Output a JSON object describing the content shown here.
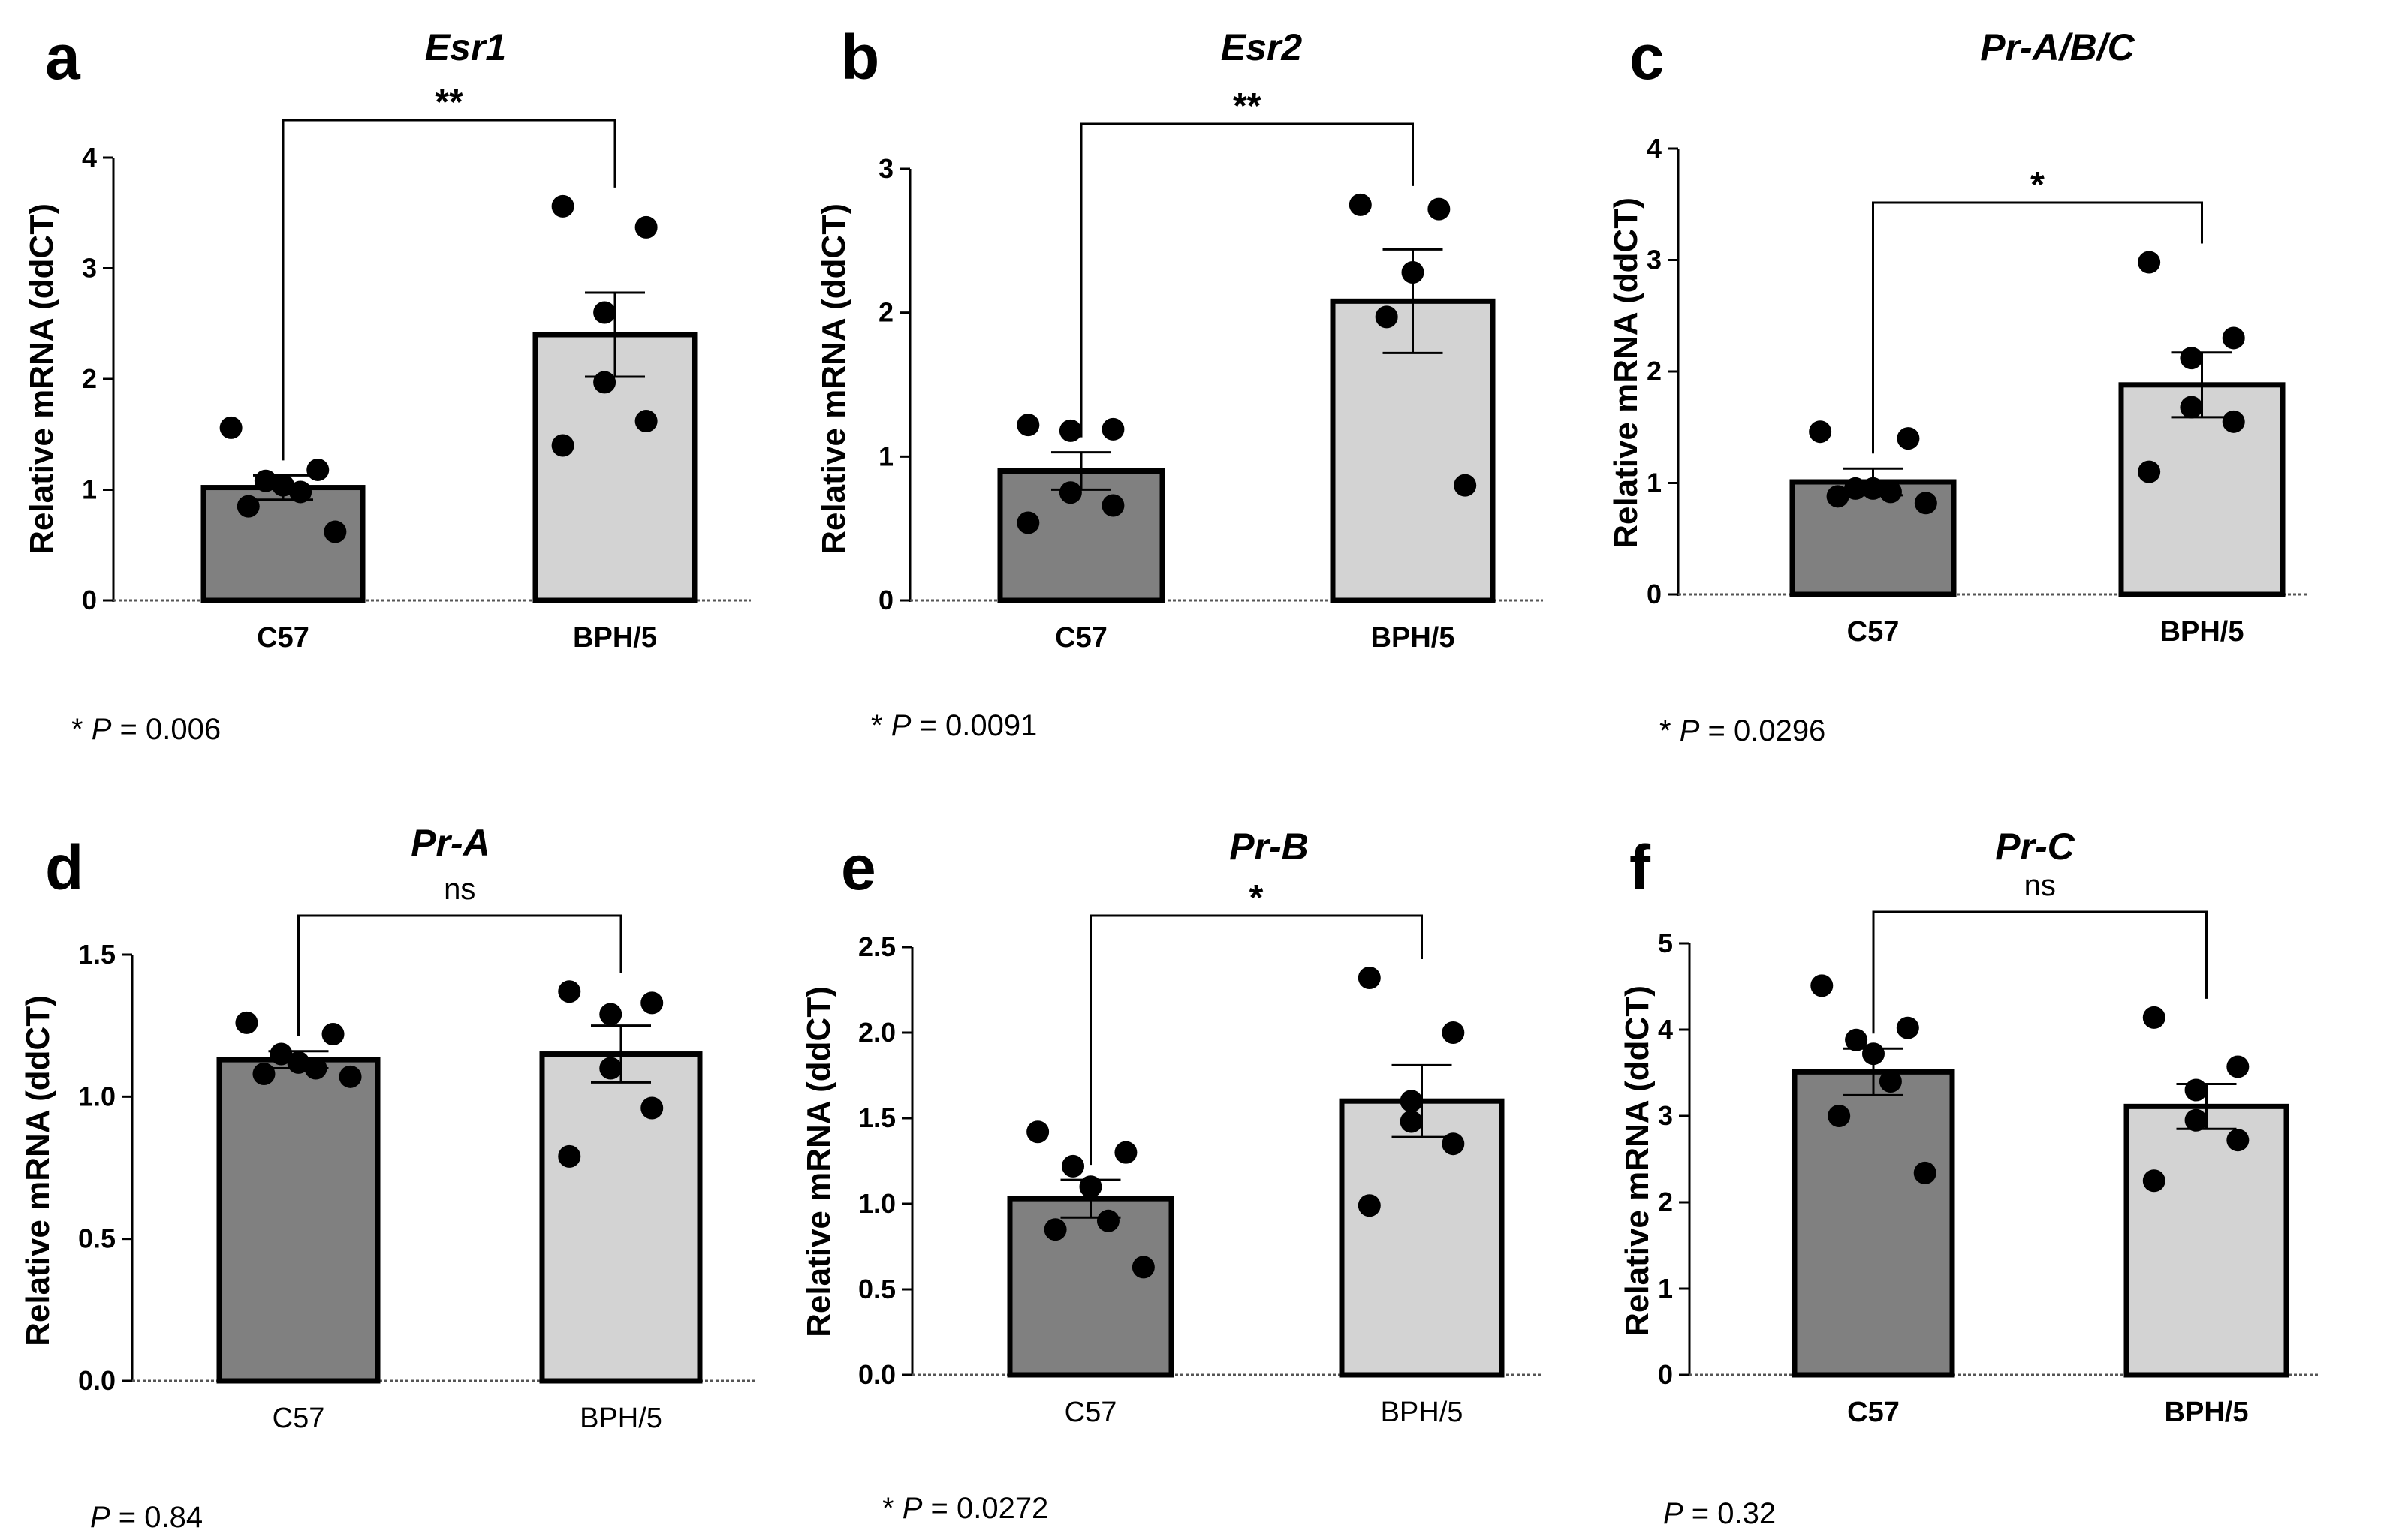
{
  "figure": {
    "ylabel": "Relative mRNA (ddCT)"
  },
  "colors": {
    "C57": "#808080",
    "BPH/5": "#d3d3d3",
    "outline": "#000000"
  },
  "chart_data": [
    {
      "type": "bar",
      "panel": "a",
      "title": "Esr1",
      "ylabel": "Relative mRNA (ddCT)",
      "ylim": [
        0,
        4
      ],
      "ticks": [
        "0",
        "1",
        "2",
        "3",
        "4"
      ],
      "categories": [
        "C57",
        "BPH/5"
      ],
      "category_label_bold": true,
      "values": [
        1.02,
        2.4
      ],
      "sem": [
        0.11,
        0.38
      ],
      "points": [
        [
          1.56,
          1.18,
          1.08,
          1.04,
          0.98,
          0.85,
          0.62
        ],
        [
          3.56,
          3.37,
          2.6,
          1.97,
          1.62,
          1.4
        ]
      ],
      "significance": "**",
      "p_note": {
        "prefix": "* ",
        "p": "P",
        "rest": " = 0.006"
      }
    },
    {
      "type": "bar",
      "panel": "b",
      "title": "Esr2",
      "ylabel": "Relative mRNA (ddCT)",
      "ylim": [
        0,
        3
      ],
      "ticks": [
        "0",
        "1",
        "2",
        "3"
      ],
      "categories": [
        "C57",
        "BPH/5"
      ],
      "category_label_bold": true,
      "values": [
        0.9,
        2.08
      ],
      "sem": [
        0.13,
        0.36
      ],
      "points": [
        [
          1.22,
          1.19,
          1.18,
          0.75,
          0.66,
          0.54
        ],
        [
          2.75,
          2.72,
          2.28,
          1.97,
          0.8
        ]
      ],
      "significance": "**",
      "p_note": {
        "prefix": "* ",
        "p": "P",
        "rest": " = 0.0091"
      }
    },
    {
      "type": "bar",
      "panel": "c",
      "title": "Pr-A/B/C",
      "ylabel": "Relative mRNA (ddCT)",
      "ylim": [
        0,
        4
      ],
      "ticks": [
        "0",
        "1",
        "2",
        "3",
        "4"
      ],
      "categories": [
        "C57",
        "BPH/5"
      ],
      "category_label_bold": true,
      "values": [
        1.01,
        1.88
      ],
      "sem": [
        0.12,
        0.29
      ],
      "points": [
        [
          1.46,
          1.4,
          0.95,
          0.95,
          0.92,
          0.88,
          0.82
        ],
        [
          2.98,
          2.3,
          2.12,
          1.68,
          1.55,
          1.1
        ]
      ],
      "significance": "*",
      "p_note": {
        "prefix": "* ",
        "p": "P",
        "rest": " = 0.0296"
      }
    },
    {
      "type": "bar",
      "panel": "d",
      "title": "Pr-A",
      "ylabel": "Relative mRNA (ddCT)",
      "ylim": [
        0,
        1.5
      ],
      "ticks": [
        "0.0",
        "0.5",
        "1.0",
        "1.5"
      ],
      "categories": [
        "C57",
        "BPH/5"
      ],
      "category_label_bold": false,
      "values": [
        1.13,
        1.15
      ],
      "sem": [
        0.03,
        0.1
      ],
      "points": [
        [
          1.26,
          1.22,
          1.15,
          1.12,
          1.1,
          1.08,
          1.07
        ],
        [
          1.37,
          1.33,
          1.29,
          1.1,
          0.96,
          0.79
        ]
      ],
      "significance": "ns",
      "p_note": {
        "prefix": "",
        "p": "P",
        "rest": " = 0.84"
      }
    },
    {
      "type": "bar",
      "panel": "e",
      "title": "Pr-B",
      "ylabel": "Relative mRNA (ddCT)",
      "ylim": [
        0,
        2.5
      ],
      "ticks": [
        "0.0",
        "0.5",
        "1.0",
        "1.5",
        "2.0",
        "2.5"
      ],
      "categories": [
        "C57",
        "BPH/5"
      ],
      "category_label_bold": false,
      "values": [
        1.03,
        1.6
      ],
      "sem": [
        0.11,
        0.21
      ],
      "points": [
        [
          1.42,
          1.3,
          1.22,
          1.1,
          0.9,
          0.85,
          0.63
        ],
        [
          2.32,
          2.0,
          1.6,
          1.48,
          1.35,
          0.99
        ]
      ],
      "significance": "*",
      "p_note": {
        "prefix": "* ",
        "p": "P",
        "rest": " = 0.0272"
      }
    },
    {
      "type": "bar",
      "panel": "f",
      "title": "Pr-C",
      "ylabel": "Relative mRNA (ddCT)",
      "ylim": [
        0,
        5
      ],
      "ticks": [
        "0",
        "1",
        "2",
        "3",
        "4",
        "5"
      ],
      "categories": [
        "C57",
        "BPH/5"
      ],
      "category_label_bold": true,
      "values": [
        3.51,
        3.11
      ],
      "sem": [
        0.27,
        0.26
      ],
      "points": [
        [
          4.51,
          4.02,
          3.88,
          3.72,
          3.4,
          3.0,
          2.34
        ],
        [
          4.14,
          3.57,
          3.3,
          2.95,
          2.72,
          2.25
        ]
      ],
      "significance": "ns",
      "p_note": {
        "prefix": "",
        "p": "P",
        "rest": " = 0.32"
      }
    }
  ]
}
